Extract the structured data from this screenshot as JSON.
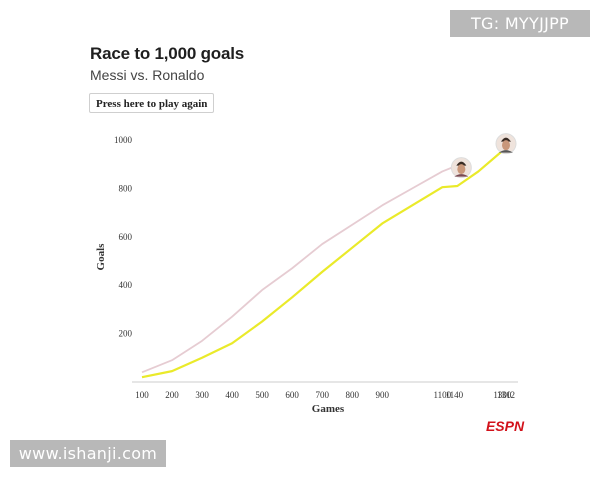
{
  "watermarks": {
    "top": "TG: MYYJJPP",
    "bottom": "www.ishanji.com"
  },
  "header": {
    "title": "Race to 1,000 goals",
    "subtitle": "Messi vs. Ronaldo",
    "replay_label": "Press here to play again"
  },
  "brand": "ESPN",
  "colors": {
    "messi": "#e6ccd2",
    "ronaldo": "#eaea2a",
    "axis": "#cccccc"
  },
  "chart_data": {
    "type": "line",
    "title": "Race to 1,000 goals",
    "subtitle": "Messi vs. Ronaldo",
    "xlabel": "Games",
    "ylabel": "Goals",
    "xlim": [
      100,
      1312
    ],
    "ylim": [
      0,
      1000
    ],
    "x_ticks": [
      100,
      200,
      300,
      400,
      500,
      600,
      700,
      800,
      900,
      1100,
      1140,
      1300,
      1312
    ],
    "y_ticks": [
      200,
      400,
      600,
      800,
      1000
    ],
    "grid": false,
    "series": [
      {
        "id": "messi",
        "points": [
          [
            100,
            40
          ],
          [
            200,
            90
          ],
          [
            300,
            170
          ],
          [
            400,
            270
          ],
          [
            500,
            380
          ],
          [
            600,
            470
          ],
          [
            700,
            570
          ],
          [
            800,
            650
          ],
          [
            900,
            730
          ],
          [
            1000,
            800
          ],
          [
            1100,
            870
          ],
          [
            1140,
            890
          ]
        ]
      },
      {
        "id": "ronaldo",
        "points": [
          [
            100,
            20
          ],
          [
            200,
            45
          ],
          [
            300,
            100
          ],
          [
            400,
            160
          ],
          [
            500,
            250
          ],
          [
            600,
            350
          ],
          [
            700,
            455
          ],
          [
            800,
            555
          ],
          [
            900,
            655
          ],
          [
            1000,
            730
          ],
          [
            1100,
            805
          ],
          [
            1150,
            810
          ],
          [
            1220,
            870
          ],
          [
            1300,
            955
          ],
          [
            1312,
            960
          ]
        ]
      }
    ]
  }
}
